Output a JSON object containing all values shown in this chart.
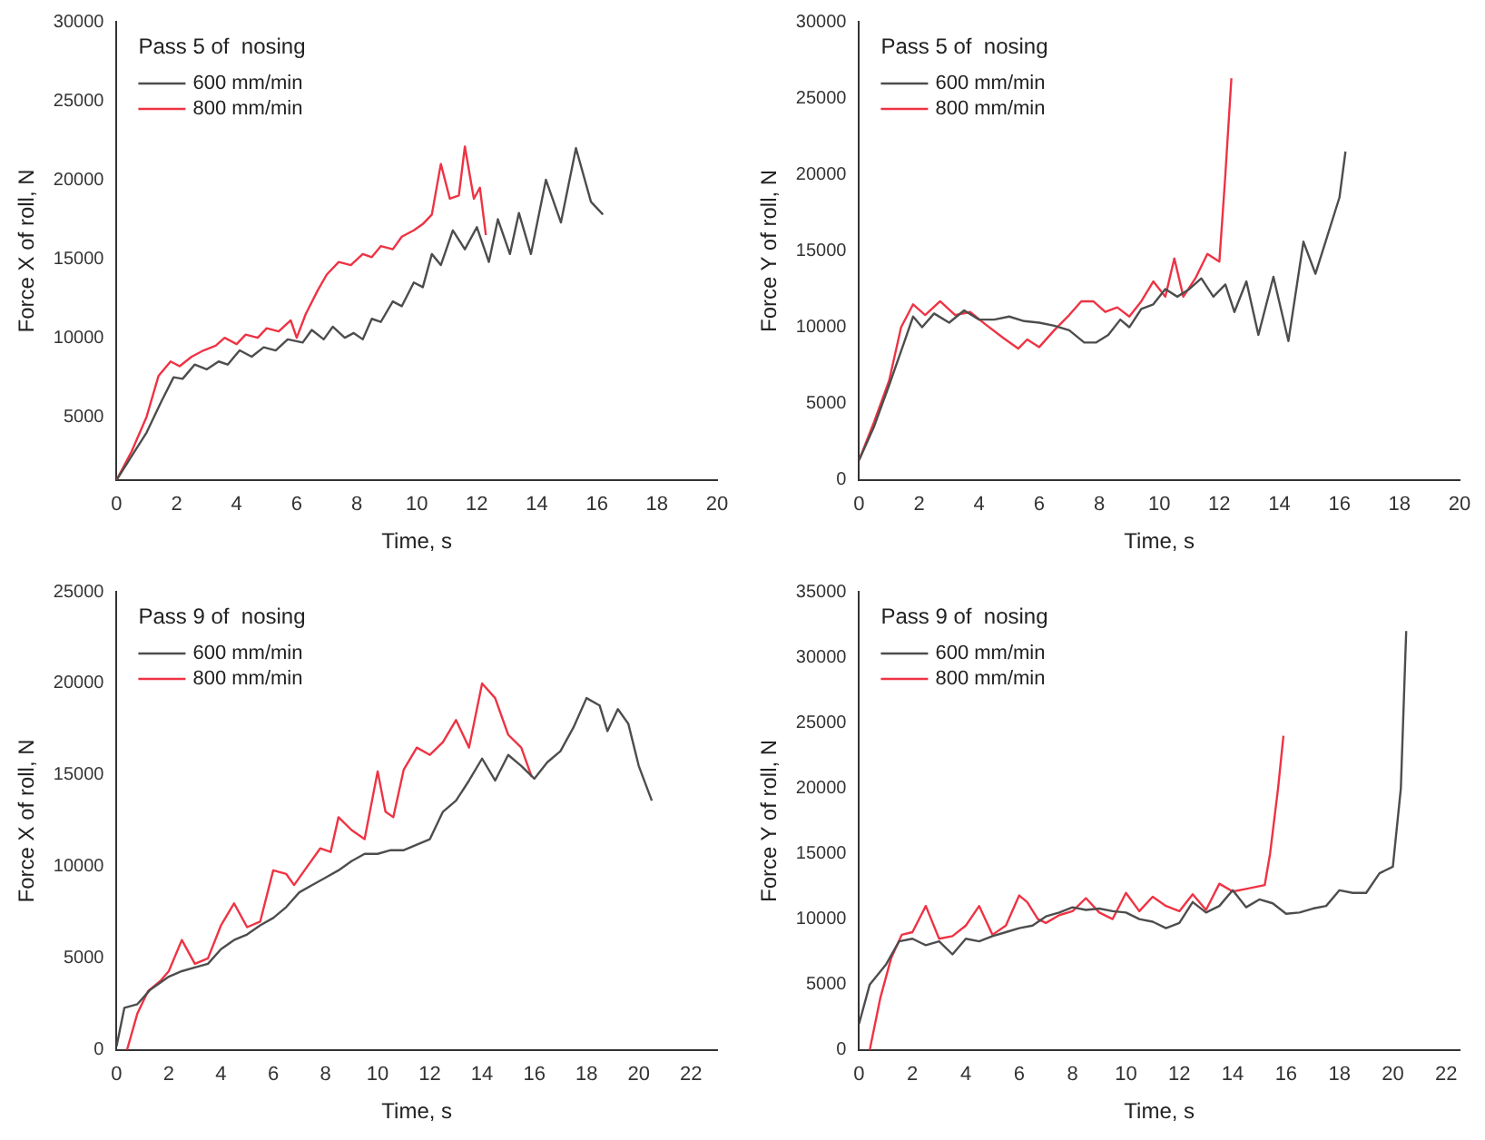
{
  "chart_data": [
    {
      "type": "line",
      "legend_title": "Pass 5 of  nosing",
      "xlabel": "Time, s",
      "ylabel": "Force X of roll, N",
      "xlim": [
        0,
        20
      ],
      "xticks": [
        0,
        2,
        4,
        6,
        8,
        10,
        12,
        14,
        16,
        18,
        20
      ],
      "ylim": [
        1000,
        30000
      ],
      "yticks": [
        5000,
        10000,
        15000,
        20000,
        25000,
        30000
      ],
      "grid": false,
      "legend": "top left",
      "marker": "none",
      "line_style": "solid",
      "series": [
        {
          "name": "600 mm/min",
          "color": "#4d4d4d",
          "x": [
            0,
            0.5,
            1,
            1.5,
            1.9,
            2.2,
            2.6,
            3,
            3.4,
            3.7,
            4.1,
            4.5,
            4.9,
            5.3,
            5.7,
            6.2,
            6.5,
            6.9,
            7.2,
            7.6,
            7.9,
            8.2,
            8.5,
            8.8,
            9.2,
            9.5,
            9.9,
            10.2,
            10.5,
            10.8,
            11.2,
            11.6,
            12,
            12.4,
            12.7,
            13.1,
            13.4,
            13.8,
            14.3,
            14.8,
            15.3,
            15.8,
            16.2
          ],
          "values": [
            1000,
            2500,
            4000,
            6000,
            7500,
            7400,
            8300,
            8000,
            8500,
            8300,
            9200,
            8800,
            9400,
            9200,
            9900,
            9700,
            10500,
            9900,
            10700,
            10000,
            10300,
            9900,
            11200,
            11000,
            12300,
            12000,
            13500,
            13200,
            15300,
            14600,
            16800,
            15600,
            17000,
            14800,
            17500,
            15300,
            17900,
            15300,
            20000,
            17300,
            22000,
            18600,
            17800
          ]
        },
        {
          "name": "800 mm/min",
          "color": "#ee3344",
          "x": [
            0,
            0.5,
            1,
            1.4,
            1.8,
            2.1,
            2.5,
            2.9,
            3.3,
            3.6,
            4,
            4.3,
            4.7,
            5,
            5.4,
            5.8,
            6,
            6.3,
            6.7,
            7,
            7.4,
            7.8,
            8.2,
            8.5,
            8.8,
            9.2,
            9.5,
            9.9,
            10.2,
            10.5,
            10.8,
            11.1,
            11.4,
            11.6,
            11.9,
            12.1,
            12.3
          ],
          "values": [
            1000,
            2800,
            5000,
            7600,
            8500,
            8200,
            8800,
            9200,
            9500,
            10000,
            9600,
            10200,
            10000,
            10600,
            10400,
            11100,
            10000,
            11500,
            13000,
            14000,
            14800,
            14600,
            15300,
            15100,
            15800,
            15600,
            16400,
            16800,
            17200,
            17800,
            21000,
            18800,
            19000,
            22100,
            18800,
            19500,
            16500
          ]
        }
      ]
    },
    {
      "type": "line",
      "legend_title": "Pass 5 of  nosing",
      "xlabel": "Time, s",
      "ylabel": "Force Y of roll, N",
      "xlim": [
        0,
        20
      ],
      "xticks": [
        0,
        2,
        4,
        6,
        8,
        10,
        12,
        14,
        16,
        18,
        20
      ],
      "ylim": [
        0,
        30000
      ],
      "yticks": [
        0,
        5000,
        10000,
        15000,
        20000,
        25000,
        30000
      ],
      "grid": false,
      "legend": "top left",
      "marker": "none",
      "line_style": "solid",
      "series": [
        {
          "name": "600 mm/min",
          "color": "#4d4d4d",
          "x": [
            0,
            0.5,
            1,
            1.5,
            1.8,
            2.1,
            2.5,
            3,
            3.5,
            4,
            4.5,
            5,
            5.5,
            6,
            6.5,
            7,
            7.5,
            7.9,
            8.3,
            8.7,
            9,
            9.4,
            9.8,
            10.2,
            10.6,
            11,
            11.4,
            11.8,
            12.2,
            12.5,
            12.9,
            13.3,
            13.8,
            14.3,
            14.8,
            15.2,
            15.6,
            16,
            16.2
          ],
          "values": [
            1300,
            3500,
            6200,
            9000,
            10700,
            10000,
            10900,
            10300,
            11100,
            10500,
            10500,
            10700,
            10400,
            10300,
            10100,
            9800,
            9000,
            9000,
            9500,
            10500,
            10000,
            11200,
            11500,
            12500,
            12000,
            12500,
            13200,
            12000,
            12800,
            11000,
            13000,
            9500,
            13300,
            9100,
            15600,
            13500,
            16000,
            18500,
            21500
          ]
        },
        {
          "name": "800 mm/min",
          "color": "#ee3344",
          "x": [
            0,
            0.5,
            1,
            1.4,
            1.8,
            2.2,
            2.7,
            3.2,
            3.7,
            4.2,
            4.8,
            5.3,
            5.6,
            6,
            6.5,
            7,
            7.4,
            7.8,
            8.2,
            8.6,
            9,
            9.4,
            9.8,
            10.2,
            10.5,
            10.8,
            11.2,
            11.6,
            12,
            12.2,
            12.4
          ],
          "values": [
            1300,
            3800,
            6500,
            10000,
            11500,
            10800,
            11700,
            10800,
            11000,
            10200,
            9300,
            8600,
            9200,
            8700,
            9800,
            10800,
            11700,
            11700,
            11000,
            11300,
            10700,
            11700,
            13000,
            12000,
            14500,
            12000,
            13200,
            14800,
            14300,
            20000,
            26300
          ]
        }
      ]
    },
    {
      "type": "line",
      "legend_title": "Pass 9 of  nosing",
      "xlabel": "Time, s",
      "ylabel": "Force X of roll, N",
      "xlim": [
        0,
        23
      ],
      "xticks": [
        0,
        2,
        4,
        6,
        8,
        10,
        12,
        14,
        16,
        18,
        20,
        22
      ],
      "ylim": [
        0,
        25000
      ],
      "yticks": [
        0,
        5000,
        10000,
        15000,
        20000,
        25000
      ],
      "grid": false,
      "legend": "top left",
      "marker": "none",
      "line_style": "solid",
      "series": [
        {
          "name": "600 mm/min",
          "color": "#4d4d4d",
          "x": [
            0,
            0.3,
            0.8,
            1.3,
            2,
            2.5,
            3,
            3.5,
            4,
            4.5,
            5,
            5.5,
            6,
            6.5,
            7,
            7.5,
            8,
            8.5,
            9,
            9.5,
            10,
            10.5,
            11,
            11.5,
            12,
            12.5,
            13,
            13.5,
            14,
            14.5,
            15,
            15.5,
            16,
            16.5,
            17,
            17.5,
            18,
            18.5,
            18.8,
            19.2,
            19.6,
            20,
            20.5
          ],
          "values": [
            200,
            2300,
            2500,
            3300,
            4000,
            4300,
            4500,
            4700,
            5500,
            6000,
            6300,
            6800,
            7200,
            7800,
            8600,
            9000,
            9400,
            9800,
            10300,
            10700,
            10700,
            10900,
            10900,
            11200,
            11500,
            13000,
            13600,
            14700,
            15900,
            14700,
            16100,
            15500,
            14800,
            15700,
            16300,
            17600,
            19200,
            18800,
            17400,
            18600,
            17800,
            15500,
            13600
          ]
        },
        {
          "name": "800 mm/min",
          "color": "#ee3344",
          "x": [
            0.4,
            0.8,
            1.2,
            1.7,
            2,
            2.5,
            3,
            3.5,
            4,
            4.5,
            5,
            5.5,
            6,
            6.5,
            6.8,
            7.2,
            7.8,
            8.2,
            8.5,
            9,
            9.5,
            10,
            10.3,
            10.6,
            11,
            11.5,
            12,
            12.5,
            13,
            13.5,
            14,
            14.5,
            15,
            15.5,
            15.9
          ],
          "values": [
            0,
            2000,
            3200,
            3800,
            4300,
            6000,
            4700,
            5000,
            6800,
            8000,
            6700,
            7000,
            9800,
            9600,
            9000,
            9800,
            11000,
            10800,
            12700,
            12000,
            11500,
            15200,
            13000,
            12700,
            15300,
            16500,
            16100,
            16800,
            18000,
            16500,
            20000,
            19200,
            17200,
            16500,
            14900
          ]
        }
      ]
    },
    {
      "type": "line",
      "legend_title": "Pass 9 of  nosing",
      "xlabel": "Time, s",
      "ylabel": "Force Y of roll, N",
      "xlim": [
        0,
        22.5
      ],
      "xticks": [
        0,
        2,
        4,
        6,
        8,
        10,
        12,
        14,
        16,
        18,
        20,
        22
      ],
      "ylim": [
        0,
        35000
      ],
      "yticks": [
        0,
        5000,
        10000,
        15000,
        20000,
        25000,
        30000,
        35000
      ],
      "grid": false,
      "legend": "top left",
      "marker": "none",
      "line_style": "solid",
      "series": [
        {
          "name": "600 mm/min",
          "color": "#4d4d4d",
          "x": [
            0,
            0.4,
            1,
            1.5,
            2,
            2.5,
            3,
            3.5,
            4,
            4.5,
            5,
            5.5,
            6,
            6.5,
            7,
            7.5,
            8,
            8.5,
            9,
            9.5,
            10,
            10.5,
            11,
            11.5,
            12,
            12.5,
            13,
            13.5,
            14,
            14.5,
            15,
            15.5,
            16,
            16.5,
            17,
            17.5,
            18,
            18.5,
            19,
            19.5,
            20,
            20.3,
            20.5
          ],
          "values": [
            2000,
            5000,
            6500,
            8300,
            8500,
            8000,
            8300,
            7300,
            8500,
            8300,
            8700,
            9000,
            9300,
            9500,
            10200,
            10500,
            10900,
            10700,
            10800,
            10600,
            10500,
            10000,
            9800,
            9300,
            9700,
            11300,
            10500,
            11000,
            12200,
            10900,
            11500,
            11200,
            10400,
            10500,
            10800,
            11000,
            12200,
            12000,
            12000,
            13500,
            14000,
            20000,
            32000
          ]
        },
        {
          "name": "800 mm/min",
          "color": "#ee3344",
          "x": [
            0.4,
            0.8,
            1.2,
            1.6,
            2,
            2.5,
            3,
            3.5,
            4,
            4.5,
            5,
            5.5,
            6,
            6.3,
            6.7,
            7,
            7.5,
            8,
            8.5,
            9,
            9.5,
            10,
            10.5,
            11,
            11.5,
            12,
            12.5,
            13,
            13.5,
            14,
            14.5,
            15.2,
            15.4,
            15.7,
            15.9
          ],
          "values": [
            0,
            4000,
            7000,
            8800,
            9000,
            11000,
            8500,
            8700,
            9500,
            11000,
            8800,
            9500,
            11800,
            11300,
            10000,
            9700,
            10300,
            10600,
            11600,
            10500,
            10000,
            12000,
            10600,
            11700,
            11000,
            10600,
            11900,
            10700,
            12700,
            12100,
            12300,
            12600,
            15000,
            20000,
            24000
          ]
        }
      ]
    }
  ]
}
